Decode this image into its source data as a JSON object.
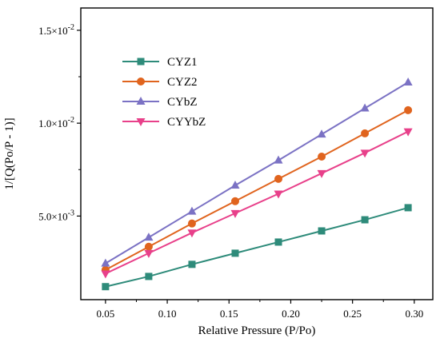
{
  "chart_data": {
    "type": "line",
    "xlabel": "Relative Pressure (P/Po)",
    "ylabel": "1/[Q(Po/P - 1)]",
    "xlim": [
      0.03,
      0.315
    ],
    "ylim": [
      0.0005,
      0.0162
    ],
    "x_ticks": [
      0.05,
      0.1,
      0.15,
      0.2,
      0.25,
      0.3
    ],
    "x_tick_labels": [
      "0.05",
      "0.10",
      "0.15",
      "0.20",
      "0.25",
      "0.30"
    ],
    "y_ticks": [
      0.005,
      0.01,
      0.015
    ],
    "y_tick_labels": [
      {
        "mantissa": "5.0×10",
        "exp": "-3"
      },
      {
        "mantissa": "1.0×10",
        "exp": "-2"
      },
      {
        "mantissa": "1.5×10",
        "exp": "-2"
      }
    ],
    "grid": false,
    "legend_position": "top-left",
    "x": [
      0.05,
      0.085,
      0.12,
      0.155,
      0.19,
      0.225,
      0.26,
      0.295
    ],
    "series": [
      {
        "name": "CYZ1",
        "color": "#2e8b7a",
        "marker": "square",
        "values": [
          0.0012,
          0.00175,
          0.0024,
          0.003,
          0.0036,
          0.0042,
          0.0048,
          0.00545
        ]
      },
      {
        "name": "CYZ2",
        "color": "#e0641e",
        "marker": "circle",
        "values": [
          0.0021,
          0.00335,
          0.0046,
          0.0058,
          0.007,
          0.0082,
          0.00945,
          0.0107
        ]
      },
      {
        "name": "CYbZ",
        "color": "#7b72c4",
        "marker": "triangle-up",
        "values": [
          0.00245,
          0.00385,
          0.00525,
          0.00665,
          0.008,
          0.0094,
          0.0108,
          0.0122
        ]
      },
      {
        "name": "CYYbZ",
        "color": "#e8408a",
        "marker": "triangle-down",
        "values": [
          0.0019,
          0.003,
          0.0041,
          0.00515,
          0.0062,
          0.0073,
          0.0084,
          0.00955
        ]
      }
    ]
  }
}
